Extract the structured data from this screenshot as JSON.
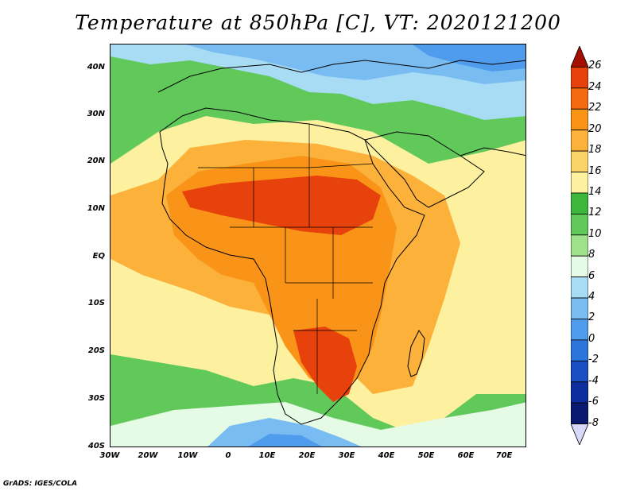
{
  "title": "Temperature at 850hPa [C], VT: 2020121200",
  "credit": "GrADS: IGES/COLA",
  "lat_labels": [
    "40N",
    "30N",
    "20N",
    "10N",
    "EQ",
    "10S",
    "20S",
    "30S",
    "40S"
  ],
  "lon_labels": [
    "30W",
    "20W",
    "10W",
    "0",
    "10E",
    "20E",
    "30E",
    "40E",
    "50E",
    "60E",
    "70E"
  ],
  "colorbar": {
    "labels": [
      "26",
      "24",
      "22",
      "20",
      "18",
      "16",
      "14",
      "12",
      "10",
      "8",
      "6",
      "4",
      "2",
      "0",
      "-2",
      "-4",
      "-6",
      "-8"
    ],
    "colors": [
      "#a50f00",
      "#e8420c",
      "#f56a10",
      "#f99419",
      "#fbb13a",
      "#f9d268",
      "#fdf1a0",
      "#3cb63c",
      "#61c95a",
      "#9fe08a",
      "#e6fbe6",
      "#a8dcf5",
      "#78bcf2",
      "#4f9ced",
      "#2b76dd",
      "#1a4fc4",
      "#0c2e9c",
      "#0a1a70",
      "#d8d8f8"
    ]
  },
  "map_colors": {
    "land_hot": "#e8420c",
    "land_warm": "#f99419",
    "land_mild": "#fbb13a",
    "pale": "#fdf1a0",
    "green": "#61c95a",
    "green_dark": "#3cb63c",
    "cyan": "#e6fbe6",
    "blue_light": "#a8dcf5",
    "blue": "#78bcf2",
    "blue_dark": "#4f9ced"
  }
}
